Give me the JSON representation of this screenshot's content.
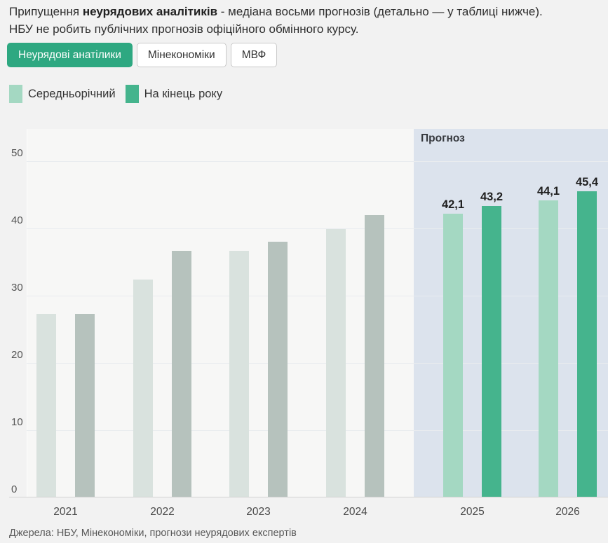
{
  "header": {
    "line1_prefix": "Припущення ",
    "line1_bold": "неурядових аналітиків",
    "line1_rest": " - медіана восьми прогнозів (детально — у таблиці нижче).",
    "line2": "НБУ не робить публічних прогнозів офіційного обмінного курсу."
  },
  "tabs": [
    {
      "label": "Неурядові анатілики",
      "active": true
    },
    {
      "label": "Мінекономіки",
      "active": false
    },
    {
      "label": "МВФ",
      "active": false
    }
  ],
  "legend": [
    {
      "label": "Середньорічний",
      "color": "#a4d8c2"
    },
    {
      "label": "На кінець року",
      "color": "#45b48d"
    }
  ],
  "accent_color": "#2ea881",
  "chart_data": {
    "type": "bar",
    "title": "",
    "categories": [
      "2021",
      "2022",
      "2023",
      "2024",
      "2025",
      "2026"
    ],
    "series": [
      {
        "name": "Середньорічний",
        "values": [
          27.2,
          32.3,
          36.6,
          39.8,
          42.1,
          44.1
        ]
      },
      {
        "name": "На кінець року",
        "values": [
          27.2,
          36.6,
          37.9,
          41.9,
          43.2,
          45.4
        ]
      }
    ],
    "value_labels_shown_for": [
      "2025",
      "2026"
    ],
    "visible_value_labels": [
      "42,1",
      "43,2",
      "44,1",
      "45,4"
    ],
    "decimal_separator": ",",
    "forecast_label": "Прогноз",
    "forecast_years": [
      "2025",
      "2026"
    ],
    "yticks": [
      0,
      10,
      20,
      30,
      40,
      50
    ],
    "ylim": [
      0,
      55
    ],
    "grid": "horizontal",
    "legend_position": "top-left",
    "colors": {
      "historical_avg": "#d9e2de",
      "historical_end": "#b6c2bd",
      "forecast_avg": "#a4d8c2",
      "forecast_end": "#45b48d",
      "forecast_band_bg": "#dce3ed"
    }
  },
  "source": "Джерела: НБУ, Мінекономіки, прогнози неурядових експертів"
}
